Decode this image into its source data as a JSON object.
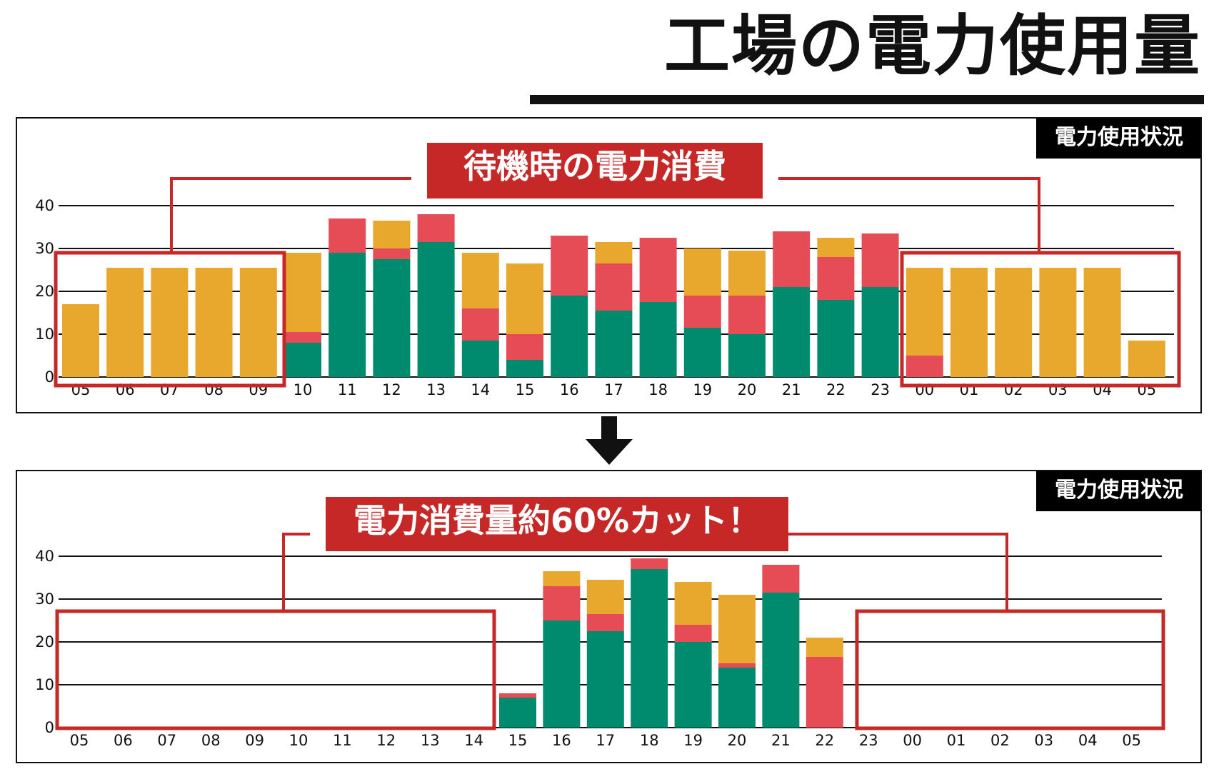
{
  "title": "工場の電力使用量",
  "colors": {
    "green": "#008a6e",
    "red": "#e54c56",
    "orange": "#e8a72d",
    "frame": "#c62828",
    "tag_bg": "#000000"
  },
  "arrow_icon": "down-arrow",
  "chart_data": [
    {
      "type": "bar",
      "stacked": true,
      "tag": "電力使用状況",
      "callout": "待機時の電力消費",
      "categories": [
        "05",
        "06",
        "07",
        "08",
        "09",
        "10",
        "11",
        "12",
        "13",
        "14",
        "15",
        "16",
        "17",
        "18",
        "19",
        "20",
        "21",
        "22",
        "23",
        "00",
        "01",
        "02",
        "03",
        "04",
        "05"
      ],
      "yticks": [
        0,
        10,
        20,
        30,
        40
      ],
      "ylim": [
        0,
        40
      ],
      "grid": true,
      "series": [
        {
          "color": "green",
          "values": [
            0,
            0,
            0,
            0,
            0,
            8,
            29,
            27.5,
            31.5,
            8.5,
            4,
            19,
            15.5,
            17.5,
            11.5,
            10,
            21,
            18,
            21,
            0,
            0,
            0,
            0,
            0,
            0
          ]
        },
        {
          "color": "red",
          "values": [
            0,
            0,
            0,
            0,
            0,
            2.5,
            8,
            2.5,
            6.5,
            7.5,
            6,
            14,
            11,
            15,
            7.5,
            9,
            13,
            10,
            12.5,
            5,
            0,
            0,
            0,
            0,
            0
          ]
        },
        {
          "color": "orange",
          "values": [
            17,
            25.5,
            25.5,
            25.5,
            25.5,
            18.5,
            0,
            6.5,
            0,
            13,
            16.5,
            0,
            5,
            0,
            11,
            10.5,
            0,
            4.5,
            0,
            20.5,
            25.5,
            25.5,
            25.5,
            25.5,
            8.5
          ]
        }
      ],
      "highlight_groups": [
        [
          0,
          4
        ],
        [
          19,
          24
        ]
      ]
    },
    {
      "type": "bar",
      "stacked": true,
      "tag": "電力使用状況",
      "callout": "電力消費量約60%カット！",
      "categories": [
        "05",
        "06",
        "07",
        "08",
        "09",
        "10",
        "11",
        "12",
        "13",
        "14",
        "15",
        "16",
        "17",
        "18",
        "19",
        "20",
        "21",
        "22",
        "23",
        "00",
        "01",
        "02",
        "03",
        "04",
        "05"
      ],
      "yticks": [
        0,
        10,
        20,
        30,
        40
      ],
      "ylim": [
        0,
        40
      ],
      "grid": true,
      "series": [
        {
          "color": "green",
          "values": [
            0,
            0,
            0,
            0,
            0,
            0,
            0,
            0,
            0,
            0,
            7,
            25,
            22.5,
            37,
            20,
            14,
            31.5,
            0,
            0,
            0,
            0,
            0,
            0,
            0,
            0
          ]
        },
        {
          "color": "red",
          "values": [
            0,
            0,
            0,
            0,
            0,
            0,
            0,
            0,
            0,
            0,
            1,
            8,
            4,
            2.5,
            4,
            1,
            6.5,
            16.5,
            0,
            0,
            0,
            0,
            0,
            0,
            0
          ]
        },
        {
          "color": "orange",
          "values": [
            0,
            0,
            0,
            0,
            0,
            0,
            0,
            0,
            0,
            0,
            0,
            3.5,
            8,
            0,
            10,
            16,
            0,
            4.5,
            0,
            0,
            0,
            0,
            0,
            0,
            0
          ]
        }
      ],
      "highlight_groups": [
        [
          0,
          9
        ],
        [
          18,
          24
        ]
      ]
    }
  ]
}
